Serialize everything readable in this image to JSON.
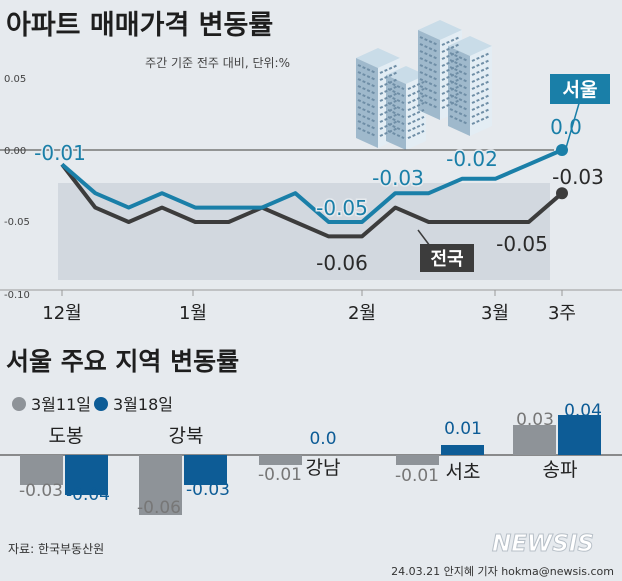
{
  "top_chart": {
    "title": "아파트 매매가격 변동률",
    "subtitle": "주간 기준 전주 대비, 단위:%",
    "y_ticks": [
      "0.05",
      "0.00",
      "-0.05",
      "-0.10"
    ],
    "x_ticks": [
      "12월",
      "1월",
      "2월",
      "3월",
      "3주"
    ],
    "series_labels": {
      "seoul": "서울",
      "nation": "전국"
    },
    "data_labels": {
      "start": "-0.01",
      "seoul_0": "-0.05",
      "seoul_1": "-0.03",
      "seoul_2": "-0.02",
      "seoul_end": "0.0",
      "nation_0": "-0.06",
      "nation_1": "-0.05",
      "nation_end": "-0.03"
    }
  },
  "bottom_chart": {
    "title": "서울 주요 지역 변동률",
    "legend": [
      "3월11일",
      "3월18일"
    ]
  },
  "footer": {
    "source": "자료: 한국부동산원",
    "credit": "24.03.21 안지혜 기자 hokma@newsis.com",
    "logo": "NEWSIS"
  },
  "colors": {
    "seoul": "#1a7fa8",
    "nation": "#3c3c3c",
    "bar_mar11": "#8e9398",
    "bar_mar18": "#0d5c96",
    "band": "#d2d8df"
  },
  "chart_data": [
    {
      "type": "line",
      "title": "아파트 매매가격 변동률",
      "ylabel": "",
      "ylim": [
        -0.1,
        0.05
      ],
      "x_tick_labels": [
        "12월",
        "1월",
        "2월",
        "3월",
        "3주"
      ],
      "series": [
        {
          "name": "서울",
          "values": [
            -0.01,
            -0.03,
            -0.04,
            -0.03,
            -0.04,
            -0.04,
            -0.04,
            -0.03,
            -0.05,
            -0.05,
            -0.03,
            -0.03,
            -0.02,
            -0.02,
            -0.01,
            0.0
          ]
        },
        {
          "name": "전국",
          "values": [
            -0.01,
            -0.04,
            -0.05,
            -0.04,
            -0.05,
            -0.05,
            -0.04,
            -0.05,
            -0.06,
            -0.06,
            -0.04,
            -0.05,
            -0.05,
            -0.05,
            -0.05,
            -0.03
          ]
        }
      ]
    },
    {
      "type": "bar",
      "title": "서울 주요 지역 변동률",
      "categories": [
        "도봉",
        "강북",
        "강남",
        "서초",
        "송파"
      ],
      "series": [
        {
          "name": "3월11일",
          "values": [
            -0.03,
            -0.06,
            -0.01,
            -0.01,
            0.03
          ],
          "labels": [
            "-0.03",
            "-0.06",
            "-0.01",
            "-0.01",
            "0.03"
          ]
        },
        {
          "name": "3월18일",
          "values": [
            -0.04,
            -0.03,
            0.0,
            0.01,
            0.04
          ],
          "labels": [
            "-0.04",
            "-0.03",
            "0.0",
            "0.01",
            "0.04"
          ]
        }
      ]
    }
  ]
}
